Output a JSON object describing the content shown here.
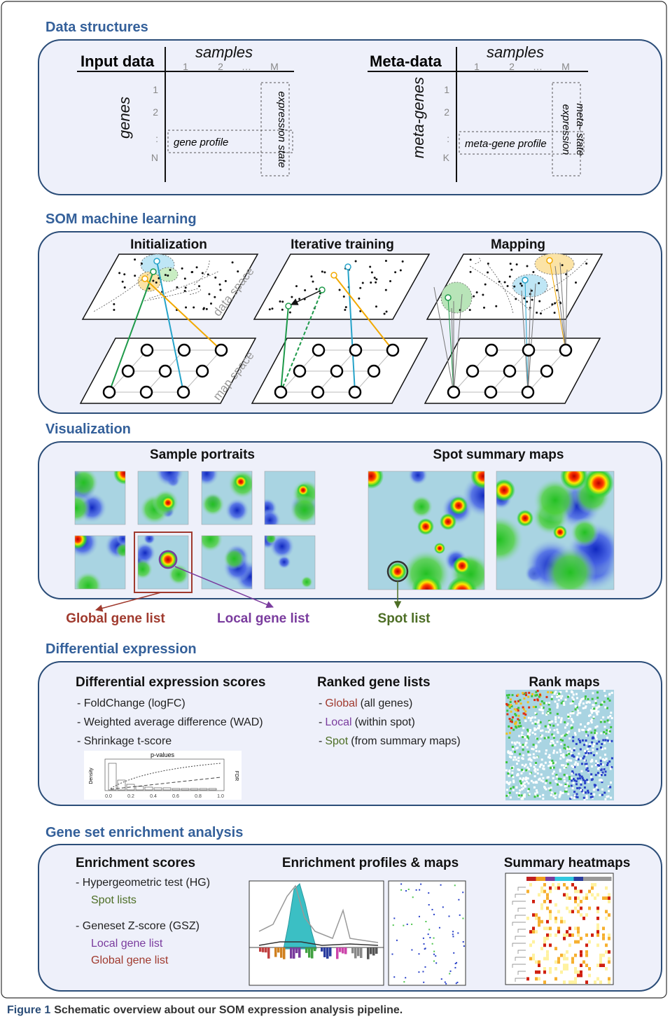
{
  "sections": [
    {
      "title": "Data structures",
      "panels": [
        {
          "title": "Input data",
          "columns_label": "samples",
          "column_ticks": [
            "1",
            "2",
            "…",
            "M"
          ],
          "rows_label": "genes",
          "row_ticks": [
            "1",
            "2",
            ":",
            "N"
          ],
          "row_profile": "gene profile",
          "column_profile": [
            "expression state"
          ]
        },
        {
          "title": "Meta-data",
          "columns_label": "samples",
          "column_ticks": [
            "1",
            "2",
            "…",
            "M"
          ],
          "rows_label": "meta-genes",
          "row_ticks": [
            "1",
            "2",
            ":",
            "K"
          ],
          "row_profile": "meta-gene profile",
          "column_profile": [
            "expression",
            "meta- state"
          ]
        }
      ]
    },
    {
      "title": "SOM machine learning",
      "panels": [
        "Initialization",
        "Iterative training",
        "Mapping"
      ],
      "plane_labels": [
        "data space",
        "map space"
      ]
    },
    {
      "title": "Visualization",
      "panels": [
        "Sample portraits",
        "Spot summary maps"
      ],
      "outputs": [
        "Global gene list",
        "Local gene list",
        "Spot list"
      ]
    },
    {
      "title": "Differential expression",
      "scores": {
        "title": "Differential expression scores",
        "items": [
          "- FoldChange (logFC)",
          "- Weighted average difference (WAD)",
          "- Shrinkage t-score"
        ]
      },
      "ranked": {
        "title": "Ranked gene lists",
        "items": [
          {
            "marker": "-",
            "name": "Global",
            "detail": "(all genes)"
          },
          {
            "marker": "-",
            "name": "Local",
            "detail": "(within spot)"
          },
          {
            "marker": "-",
            "name": "Spot",
            "detail": "(from summary maps)"
          }
        ]
      },
      "maps": {
        "title": "Rank maps"
      },
      "pvalue_plot": {
        "title": "p-values",
        "ylabel": "Density",
        "y2label": "FDR",
        "xticks": [
          "0.0",
          "0.2",
          "0.4",
          "0.6",
          "0.8",
          "1.0"
        ]
      }
    },
    {
      "title": "Gene set enrichment analysis",
      "scores": {
        "title": "Enrichment scores",
        "methods": [
          {
            "name": "- Hypergeometric test (HG)",
            "lists": [
              "Spot lists"
            ]
          },
          {
            "name": "- Geneset Z-score (GSZ)",
            "lists": [
              "Local gene list",
              "Global gene list"
            ]
          }
        ]
      },
      "profiles": {
        "title": "Enrichment profiles & maps"
      },
      "heatmaps": {
        "title": "Summary heatmaps"
      }
    }
  ],
  "caption": {
    "label": "Figure 1",
    "text": "Schematic overview about our SOM expression analysis pipeline."
  }
}
